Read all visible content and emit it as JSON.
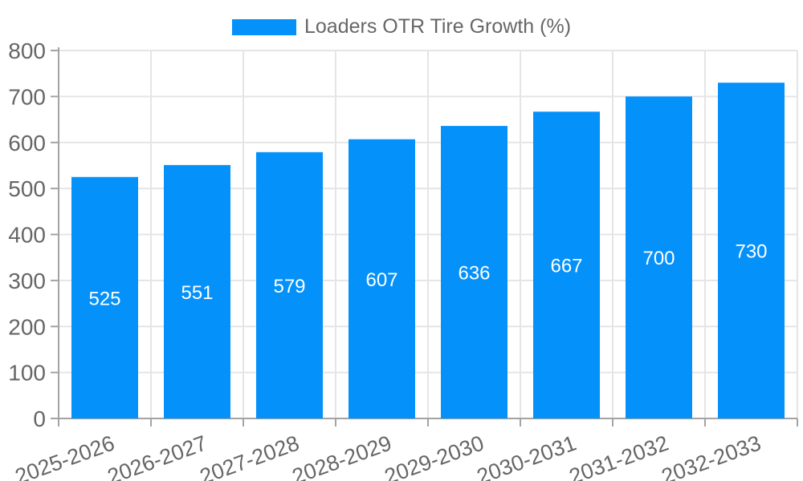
{
  "chart_data": {
    "type": "bar",
    "title": "",
    "legend_entries": [
      "Loaders OTR Tire Growth (%)"
    ],
    "legend_position": "top",
    "categories": [
      "2025-2026",
      "2026-2027",
      "2027-2028",
      "2028-2029",
      "2029-2030",
      "2030-2031",
      "2031-2032",
      "2032-2033"
    ],
    "series": [
      {
        "name": "Loaders OTR Tire Growth (%)",
        "values": [
          525,
          551,
          579,
          607,
          636,
          667,
          700,
          730
        ]
      }
    ],
    "value_labels_shown": true,
    "xlabel": "",
    "ylabel": "",
    "ylim": [
      0,
      800
    ],
    "ytick_step": 100,
    "yticks": [
      0,
      100,
      200,
      300,
      400,
      500,
      600,
      700,
      800
    ],
    "grid": true,
    "x_label_rotation_deg": -20,
    "colors": {
      "bar": "#0591fa",
      "value_label": "#ffffff",
      "grid": "#e5e5e5",
      "axis": "#a3a3a3",
      "tick_label": "#666666",
      "legend_text": "#666666",
      "background": "#ffffff"
    }
  }
}
